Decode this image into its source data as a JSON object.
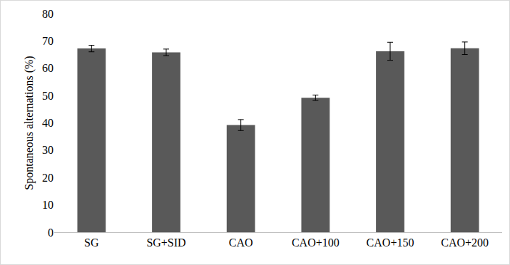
{
  "chart_data": {
    "type": "bar",
    "y_label": "Spontaneous alternations (%)",
    "categories": [
      "SG",
      "SG+SID",
      "CAO",
      "CAO+100",
      "CAO+150",
      "CAO+200"
    ],
    "values": [
      67.2,
      65.8,
      39.2,
      49.2,
      66.2,
      67.3
    ],
    "errors": [
      1.2,
      1.2,
      2.0,
      1.0,
      3.3,
      2.3
    ],
    "color": "#595959",
    "ylim": [
      0,
      80
    ],
    "yticks": [
      0,
      10,
      20,
      30,
      40,
      50,
      60,
      70,
      80
    ],
    "grid": false
  }
}
